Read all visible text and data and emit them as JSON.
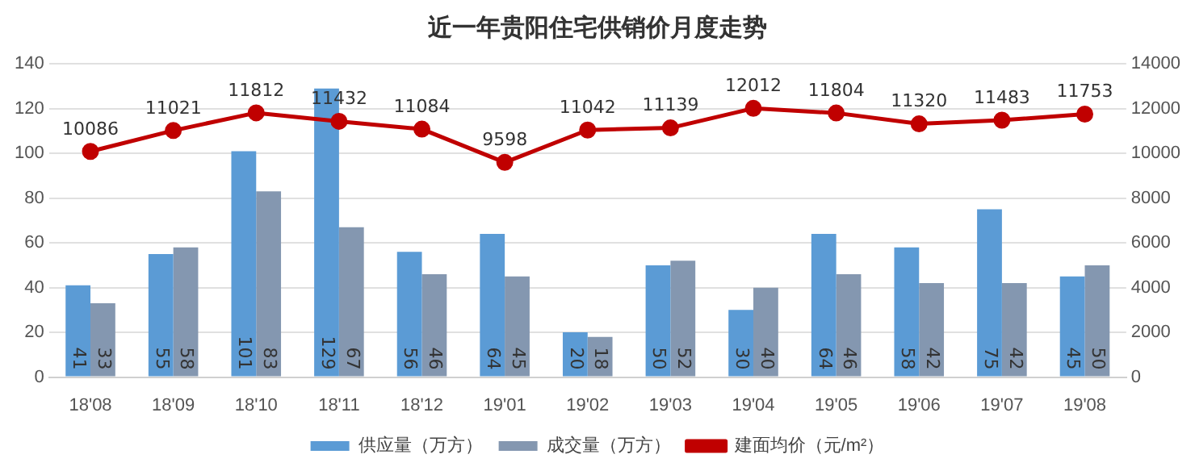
{
  "chart_data": {
    "type": "bar",
    "title": "近一年贵阳住宅供销价月度走势",
    "categories": [
      "18'08",
      "18'09",
      "18'10",
      "18'11",
      "18'12",
      "19'01",
      "19'02",
      "19'03",
      "19'04",
      "19'05",
      "19'06",
      "19'07",
      "19'08"
    ],
    "series": [
      {
        "name": "供应量（万方）",
        "color": "#5b9bd5",
        "values": [
          41,
          55,
          101,
          129,
          56,
          64,
          20,
          50,
          30,
          64,
          58,
          75,
          45
        ]
      },
      {
        "name": "成交量（万方）",
        "color": "#8497b0",
        "values": [
          33,
          58,
          83,
          67,
          46,
          45,
          18,
          52,
          40,
          46,
          42,
          42,
          50
        ]
      },
      {
        "name": "建面均价（元/m²）",
        "type": "line",
        "axis": "y2",
        "color": "#c00000",
        "marker": "circle",
        "values": [
          10086,
          11021,
          11812,
          11432,
          11084,
          9598,
          11042,
          11139,
          12012,
          11804,
          11320,
          11483,
          11753
        ]
      }
    ],
    "ylim": [
      0,
      140
    ],
    "yticks": [
      0,
      20,
      40,
      60,
      80,
      100,
      120,
      140
    ],
    "y2lim": [
      0,
      14000
    ],
    "y2ticks": [
      0,
      2000,
      4000,
      6000,
      8000,
      10000,
      12000,
      14000
    ],
    "grid": "y",
    "legend": "bottom",
    "data_labels": true
  }
}
